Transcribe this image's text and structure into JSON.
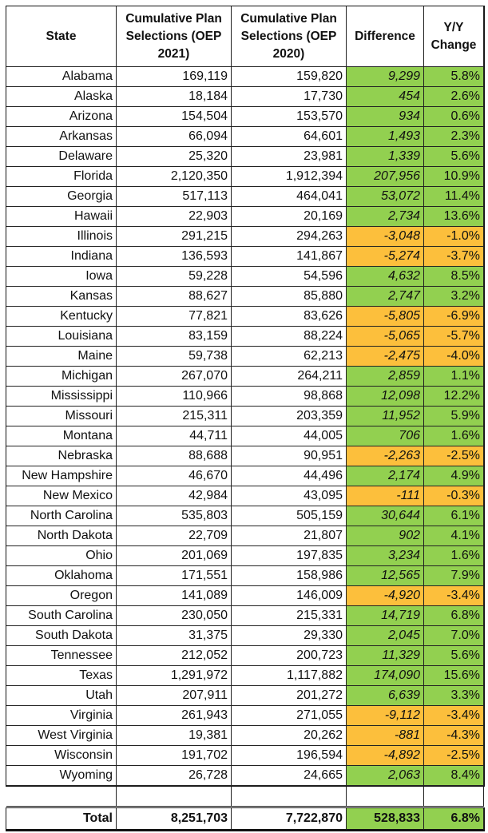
{
  "table": {
    "header": [
      "State",
      "Cumulative Plan Selections (OEP 2021)",
      "Cumulative Plan Selections (OEP 2020)",
      "Difference",
      "Y/Y Change"
    ],
    "rows": [
      [
        "Alabama",
        "169,119",
        "159,820",
        "9,299",
        "5.8%"
      ],
      [
        "Alaska",
        "18,184",
        "17,730",
        "454",
        "2.6%"
      ],
      [
        "Arizona",
        "154,504",
        "153,570",
        "934",
        "0.6%"
      ],
      [
        "Arkansas",
        "66,094",
        "64,601",
        "1,493",
        "2.3%"
      ],
      [
        "Delaware",
        "25,320",
        "23,981",
        "1,339",
        "5.6%"
      ],
      [
        "Florida",
        "2,120,350",
        "1,912,394",
        "207,956",
        "10.9%"
      ],
      [
        "Georgia",
        "517,113",
        "464,041",
        "53,072",
        "11.4%"
      ],
      [
        "Hawaii",
        "22,903",
        "20,169",
        "2,734",
        "13.6%"
      ],
      [
        "Illinois",
        "291,215",
        "294,263",
        "-3,048",
        "-1.0%"
      ],
      [
        "Indiana",
        "136,593",
        "141,867",
        "-5,274",
        "-3.7%"
      ],
      [
        "Iowa",
        "59,228",
        "54,596",
        "4,632",
        "8.5%"
      ],
      [
        "Kansas",
        "88,627",
        "85,880",
        "2,747",
        "3.2%"
      ],
      [
        "Kentucky",
        "77,821",
        "83,626",
        "-5,805",
        "-6.9%"
      ],
      [
        "Louisiana",
        "83,159",
        "88,224",
        "-5,065",
        "-5.7%"
      ],
      [
        "Maine",
        "59,738",
        "62,213",
        "-2,475",
        "-4.0%"
      ],
      [
        "Michigan",
        "267,070",
        "264,211",
        "2,859",
        "1.1%"
      ],
      [
        "Mississippi",
        "110,966",
        "98,868",
        "12,098",
        "12.2%"
      ],
      [
        "Missouri",
        "215,311",
        "203,359",
        "11,952",
        "5.9%"
      ],
      [
        "Montana",
        "44,711",
        "44,005",
        "706",
        "1.6%"
      ],
      [
        "Nebraska",
        "88,688",
        "90,951",
        "-2,263",
        "-2.5%"
      ],
      [
        "New Hampshire",
        "46,670",
        "44,496",
        "2,174",
        "4.9%"
      ],
      [
        "New Mexico",
        "42,984",
        "43,095",
        "-111",
        "-0.3%"
      ],
      [
        "North Carolina",
        "535,803",
        "505,159",
        "30,644",
        "6.1%"
      ],
      [
        "North Dakota",
        "22,709",
        "21,807",
        "902",
        "4.1%"
      ],
      [
        "Ohio",
        "201,069",
        "197,835",
        "3,234",
        "1.6%"
      ],
      [
        "Oklahoma",
        "171,551",
        "158,986",
        "12,565",
        "7.9%"
      ],
      [
        "Oregon",
        "141,089",
        "146,009",
        "-4,920",
        "-3.4%"
      ],
      [
        "South Carolina",
        "230,050",
        "215,331",
        "14,719",
        "6.8%"
      ],
      [
        "South Dakota",
        "31,375",
        "29,330",
        "2,045",
        "7.0%"
      ],
      [
        "Tennessee",
        "212,052",
        "200,723",
        "11,329",
        "5.6%"
      ],
      [
        "Texas",
        "1,291,972",
        "1,117,882",
        "174,090",
        "15.6%"
      ],
      [
        "Utah",
        "207,911",
        "201,272",
        "6,639",
        "3.3%"
      ],
      [
        "Virginia",
        "261,943",
        "271,055",
        "-9,112",
        "-3.4%"
      ],
      [
        "West Virginia",
        "19,381",
        "20,262",
        "-881",
        "-4.3%"
      ],
      [
        "Wisconsin",
        "191,702",
        "196,594",
        "-4,892",
        "-2.5%"
      ],
      [
        "Wyoming",
        "26,728",
        "24,665",
        "2,063",
        "8.4%"
      ]
    ],
    "total": [
      "Total",
      "8,251,703",
      "7,722,870",
      "528,833",
      "6.8%"
    ]
  }
}
